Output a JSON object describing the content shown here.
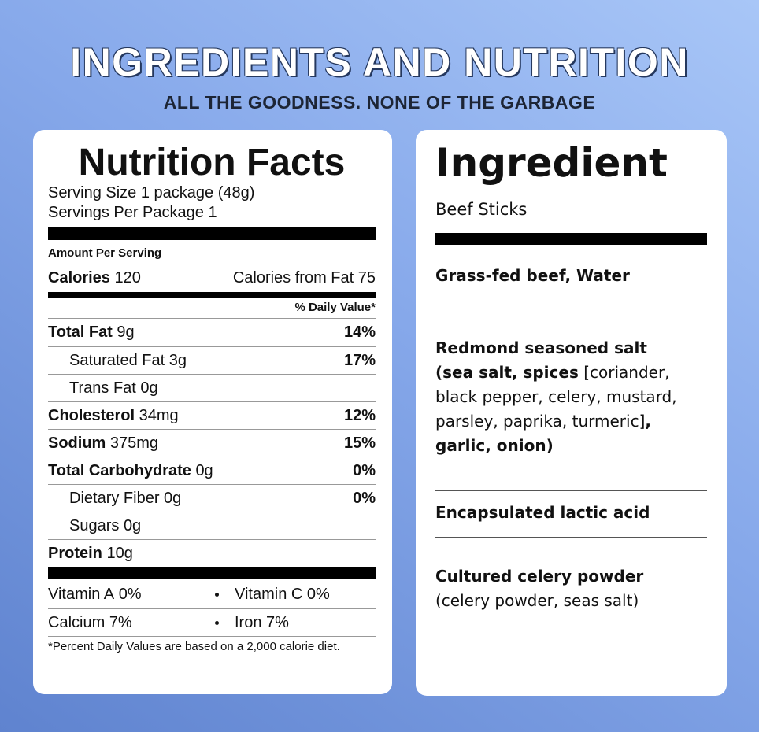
{
  "header": {
    "title": "INGREDIENTS AND NUTRITION",
    "subtitle": "ALL THE GOODNESS. NONE OF THE GARBAGE"
  },
  "nutrition": {
    "title": "Nutrition Facts",
    "serving_size": {
      "label": "Serving Size",
      "value": "1 package (48g)"
    },
    "servings": {
      "label": "Servings Per Package",
      "value": "1"
    },
    "amount_per_serving": "Amount Per Serving",
    "calories": {
      "label": "Calories",
      "value": "120"
    },
    "calories_from_fat": {
      "label": "Calories from Fat",
      "value": "75"
    },
    "daily_value_header": "% Daily Value*",
    "rows": [
      {
        "label": "Total Fat",
        "amount": "9g",
        "dv": "14%",
        "indent": false
      },
      {
        "label": "Saturated Fat",
        "amount": "3g",
        "dv": "17%",
        "indent": true
      },
      {
        "label": "Trans Fat",
        "amount": "0g",
        "indent": true
      },
      {
        "label": "Cholesterol",
        "amount": "34mg",
        "dv": "12%",
        "indent": false
      },
      {
        "label": "Sodium",
        "amount": "375mg",
        "dv": "15%",
        "indent": false
      },
      {
        "label": "Total Carbohydrate",
        "amount": "0g",
        "dv": "0%",
        "indent": false
      },
      {
        "label": "Dietary Fiber",
        "amount": "0g",
        "dv": "0%",
        "indent": true
      },
      {
        "label": "Sugars",
        "amount": "0g",
        "indent": true
      },
      {
        "label": "Protein",
        "amount": "10g",
        "indent": false
      }
    ],
    "vitamins": [
      [
        {
          "label": "Vitamin A",
          "value": "0%"
        },
        {
          "label": "Vitamin C",
          "value": "0%"
        }
      ],
      [
        {
          "label": "Calcium",
          "value": "7%"
        },
        {
          "label": "Iron",
          "value": "7%"
        }
      ]
    ],
    "footnote": "*Percent Daily Values are based on a 2,000 calorie diet."
  },
  "ingredient": {
    "title": "Ingredient",
    "subtitle": "Beef Sticks",
    "items": [
      {
        "lines": [
          [
            {
              "text": "Grass-fed beef, Water",
              "bold": true
            }
          ]
        ]
      },
      {
        "lines": [
          [
            {
              "text": "Redmond seasoned salt",
              "bold": true
            }
          ],
          [
            {
              "text": "(sea salt, spices",
              "bold": true
            },
            {
              "text": " [coriander, black pepper, celery, mustard, parsley, paprika, turmeric]",
              "bold": false
            },
            {
              "text": ", garlic, onion)",
              "bold": true
            }
          ]
        ]
      },
      {
        "lines": [
          [
            {
              "text": "Encapsulated lactic acid",
              "bold": true
            }
          ]
        ]
      },
      {
        "lines": [
          [
            {
              "text": "Cultured celery powder",
              "bold": true
            }
          ],
          [
            {
              "text": "(celery powder, seas salt)",
              "bold": false
            }
          ]
        ]
      }
    ]
  }
}
